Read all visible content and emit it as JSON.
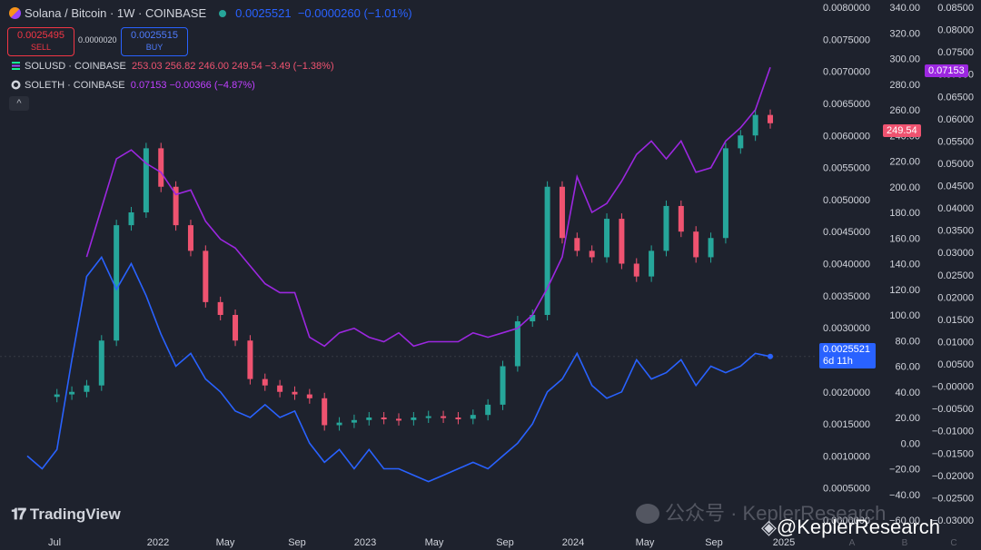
{
  "header": {
    "title": "Solana / Bitcoin · 1W · COINBASE",
    "price": "0.0025521",
    "change": "−0.0000260 (−1.01%)",
    "sell_price": "0.0025495",
    "sell_label": "SELL",
    "spread": "0.0000020",
    "buy_price": "0.0025515",
    "buy_label": "BUY"
  },
  "legend": {
    "sol_usd": {
      "name": "SOLUSD · COINBASE",
      "values": "253.03  256.82  246.00  249.54  −3.49 (−1.38%)"
    },
    "sol_eth": {
      "name": "SOLETH · COINBASE",
      "values": "0.07153  −0.00366 (−4.87%)"
    },
    "collapse": "^"
  },
  "badges": {
    "soleth_last": "0.07153",
    "solusd_last": "249.54",
    "solbtc_last": "0.0025521",
    "solbtc_countdown": "6d 11h"
  },
  "branding": {
    "tradingview": "TradingView",
    "watermark": "公众号 · KeplerResearch",
    "handle": "@KeplerResearch"
  },
  "colors": {
    "background": "#1e222d",
    "solbtc_line": "#2962ff",
    "soleth_line": "#9c27e0",
    "candle_up": "#26a69a",
    "candle_down": "#ef5370"
  },
  "chart_data": {
    "type": "line",
    "interval": "1W",
    "x_ticks": [
      "Jul",
      "2022",
      "May",
      "Sep",
      "2023",
      "May",
      "Sep",
      "2024",
      "May",
      "Sep",
      "2025"
    ],
    "extra_x_ticks": [
      "A",
      "B",
      "C"
    ],
    "axes": {
      "solbtc": {
        "ticks": [
          "0.0080000",
          "0.0075000",
          "0.0070000",
          "0.0065000",
          "0.0060000",
          "0.0055000",
          "0.0050000",
          "0.0045000",
          "0.0040000",
          "0.0035000",
          "0.0030000",
          "0.0025000",
          "0.0020000",
          "0.0015000",
          "0.0010000",
          "0.0005000",
          "0.0000000"
        ],
        "range": [
          0.0,
          0.008
        ]
      },
      "solusd": {
        "ticks": [
          "340.00",
          "320.00",
          "300.00",
          "280.00",
          "260.00",
          "240.00",
          "220.00",
          "200.00",
          "180.00",
          "160.00",
          "140.00",
          "120.00",
          "100.00",
          "80.00",
          "60.00",
          "40.00",
          "20.00",
          "0.00",
          "−20.00",
          "−40.00",
          "−60.00"
        ],
        "range": [
          -60,
          340
        ]
      },
      "soleth": {
        "ticks": [
          "0.08500",
          "0.08000",
          "0.07500",
          "0.07000",
          "0.06500",
          "0.06000",
          "0.05500",
          "0.05000",
          "0.04500",
          "0.04000",
          "0.03500",
          "0.03000",
          "0.02500",
          "0.02000",
          "0.01500",
          "0.01000",
          "0.00500",
          "−0.00000",
          "−0.00500",
          "−0.01000",
          "−0.01500",
          "−0.02000",
          "−0.02500",
          "−0.03000"
        ],
        "range": [
          -0.03,
          0.085
        ]
      }
    },
    "series": [
      {
        "name": "Solana / Bitcoin",
        "type": "line",
        "axis": "solbtc",
        "t": [
          0,
          0.02,
          0.04,
          0.06,
          0.08,
          0.1,
          0.12,
          0.14,
          0.16,
          0.18,
          0.2,
          0.22,
          0.24,
          0.26,
          0.28,
          0.3,
          0.32,
          0.34,
          0.36,
          0.38,
          0.4,
          0.42,
          0.44,
          0.46,
          0.48,
          0.5,
          0.52,
          0.54,
          0.56,
          0.58,
          0.6,
          0.62,
          0.64,
          0.66,
          0.68,
          0.7,
          0.72,
          0.74,
          0.76,
          0.78,
          0.8,
          0.82,
          0.84,
          0.86,
          0.88,
          0.9,
          0.92,
          0.94,
          0.96,
          0.98,
          1.0
        ],
        "values": [
          0.001,
          0.0008,
          0.0011,
          0.0025,
          0.0038,
          0.0041,
          0.0036,
          0.004,
          0.0035,
          0.0029,
          0.0024,
          0.0026,
          0.0022,
          0.002,
          0.0017,
          0.0016,
          0.0018,
          0.0016,
          0.0017,
          0.0012,
          0.0009,
          0.0011,
          0.0008,
          0.0011,
          0.0008,
          0.0008,
          0.0007,
          0.0006,
          0.0007,
          0.0008,
          0.0009,
          0.0008,
          0.001,
          0.0012,
          0.0015,
          0.002,
          0.0022,
          0.0026,
          0.0021,
          0.0019,
          0.002,
          0.0025,
          0.0022,
          0.0023,
          0.0025,
          0.0021,
          0.0024,
          0.0023,
          0.0024,
          0.0026,
          0.0025521
        ]
      },
      {
        "name": "SOLETH",
        "type": "line",
        "axis": "soleth",
        "t": [
          0.08,
          0.1,
          0.12,
          0.14,
          0.16,
          0.18,
          0.2,
          0.22,
          0.24,
          0.26,
          0.28,
          0.3,
          0.32,
          0.34,
          0.36,
          0.38,
          0.4,
          0.42,
          0.44,
          0.46,
          0.48,
          0.5,
          0.52,
          0.54,
          0.56,
          0.58,
          0.6,
          0.62,
          0.64,
          0.66,
          0.68,
          0.7,
          0.72,
          0.74,
          0.76,
          0.78,
          0.8,
          0.82,
          0.84,
          0.86,
          0.88,
          0.9,
          0.92,
          0.94,
          0.96,
          0.98,
          1.0
        ],
        "values": [
          0.029,
          0.04,
          0.051,
          0.053,
          0.05,
          0.048,
          0.043,
          0.044,
          0.037,
          0.033,
          0.031,
          0.027,
          0.023,
          0.021,
          0.021,
          0.011,
          0.009,
          0.012,
          0.013,
          0.011,
          0.01,
          0.012,
          0.009,
          0.01,
          0.01,
          0.01,
          0.012,
          0.011,
          0.012,
          0.013,
          0.016,
          0.022,
          0.029,
          0.047,
          0.039,
          0.041,
          0.046,
          0.052,
          0.055,
          0.051,
          0.055,
          0.048,
          0.049,
          0.055,
          0.058,
          0.062,
          0.07153
        ]
      },
      {
        "name": "SOLUSD",
        "type": "candlestick",
        "axis": "solusd",
        "t": [
          0.04,
          0.06,
          0.08,
          0.1,
          0.12,
          0.14,
          0.16,
          0.18,
          0.2,
          0.22,
          0.24,
          0.26,
          0.28,
          0.3,
          0.32,
          0.34,
          0.36,
          0.38,
          0.4,
          0.42,
          0.44,
          0.46,
          0.48,
          0.5,
          0.52,
          0.54,
          0.56,
          0.58,
          0.6,
          0.62,
          0.64,
          0.66,
          0.68,
          0.7,
          0.72,
          0.74,
          0.76,
          0.78,
          0.8,
          0.82,
          0.84,
          0.86,
          0.88,
          0.9,
          0.92,
          0.94,
          0.96,
          0.98,
          1.0
        ],
        "close": [
          38,
          40,
          45,
          80,
          170,
          180,
          230,
          200,
          170,
          150,
          110,
          100,
          80,
          50,
          45,
          40,
          38,
          35,
          14,
          16,
          18,
          20,
          19,
          18,
          20,
          21,
          20,
          19,
          22,
          30,
          60,
          95,
          100,
          200,
          160,
          150,
          145,
          175,
          140,
          130,
          150,
          185,
          165,
          145,
          160,
          230,
          240,
          256,
          249.54
        ]
      }
    ]
  }
}
